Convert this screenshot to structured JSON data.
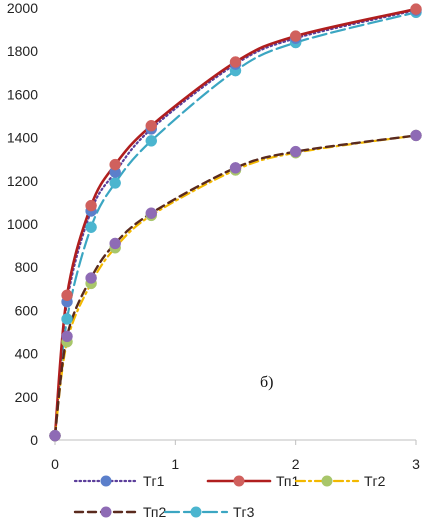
{
  "chart_data": {
    "type": "line",
    "title": "",
    "xlabel": "",
    "ylabel": "",
    "xlim": [
      0,
      3
    ],
    "ylim": [
      0,
      2000
    ],
    "x_ticks": [
      "0",
      "1",
      "2",
      "3"
    ],
    "y_ticks": [
      "0",
      "200",
      "400",
      "600",
      "800",
      "1000",
      "1200",
      "1400",
      "1600",
      "1800",
      "2000"
    ],
    "grid": "none",
    "legend_position": "bottom",
    "annotation": "б)",
    "series": [
      {
        "name": "Тг1",
        "color": "#4472C4",
        "marker_color": "#5B7FCB",
        "line_style": "dotted",
        "line_color": "#5B3E9A",
        "points": [
          [
            0,
            20
          ],
          [
            0.1,
            640
          ],
          [
            0.3,
            1060
          ],
          [
            0.5,
            1240
          ],
          [
            0.8,
            1440
          ],
          [
            1.5,
            1740
          ],
          [
            2,
            1860
          ],
          [
            3,
            1990
          ]
        ]
      },
      {
        "name": "Тп1",
        "color": "#C0504D",
        "marker_color": "#D0605D",
        "line_style": "solid",
        "line_color": "#B01E1E",
        "points": [
          [
            0,
            20
          ],
          [
            0.1,
            670
          ],
          [
            0.3,
            1085
          ],
          [
            0.5,
            1275
          ],
          [
            0.8,
            1455
          ],
          [
            1.5,
            1750
          ],
          [
            2,
            1870
          ],
          [
            3,
            1995
          ]
        ]
      },
      {
        "name": "Тг2",
        "color": "#9BBB59",
        "marker_color": "#A8C66A",
        "line_style": "dashdot",
        "line_color": "#F2B800",
        "points": [
          [
            0,
            20
          ],
          [
            0.1,
            455
          ],
          [
            0.3,
            725
          ],
          [
            0.5,
            890
          ],
          [
            0.8,
            1040
          ],
          [
            1.5,
            1250
          ],
          [
            2,
            1330
          ],
          [
            3,
            1410
          ]
        ]
      },
      {
        "name": "Тп2",
        "color": "#8064A2",
        "marker_color": "#8E6BB5",
        "line_style": "dashed",
        "line_color": "#5A2A1E",
        "points": [
          [
            0,
            20
          ],
          [
            0.1,
            480
          ],
          [
            0.3,
            750
          ],
          [
            0.5,
            910
          ],
          [
            0.8,
            1050
          ],
          [
            1.5,
            1260
          ],
          [
            2,
            1335
          ],
          [
            3,
            1410
          ]
        ]
      },
      {
        "name": "Тг3",
        "color": "#4BACC6",
        "marker_color": "#4BB5CF",
        "line_style": "longdash",
        "line_color": "#3BA6C2",
        "points": [
          [
            0,
            20
          ],
          [
            0.1,
            560
          ],
          [
            0.3,
            985
          ],
          [
            0.5,
            1190
          ],
          [
            0.8,
            1385
          ],
          [
            1.5,
            1710
          ],
          [
            2,
            1840
          ],
          [
            3,
            1980
          ]
        ]
      }
    ]
  }
}
